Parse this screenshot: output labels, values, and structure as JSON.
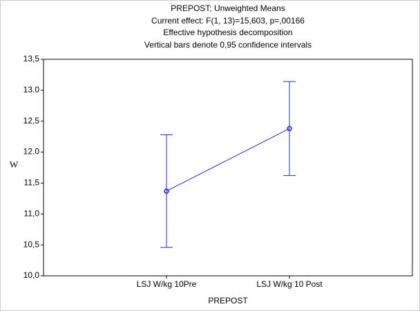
{
  "chart_data": {
    "type": "line",
    "title": "PREPOST; Unweighted Means",
    "subtitles": [
      "Current effect: F(1, 13)=15,603, p=,00166",
      "Effective hypothesis decomposition",
      "Vertical bars denote 0,95 confidence intervals"
    ],
    "x_label": "PREPOST",
    "y_label": "W",
    "categories": [
      "LSJ W/kg 10Pre",
      "LSJ W/kg 10 Post"
    ],
    "series": [
      {
        "color": "#2424e0",
        "values": [
          11.37,
          12.38
        ],
        "errors": [
          0.91,
          0.76
        ]
      }
    ],
    "ylim": [
      10.0,
      13.5
    ],
    "yticks": [
      {
        "value": 10.0,
        "label": "10,0"
      },
      {
        "value": 10.5,
        "label": "10,5"
      },
      {
        "value": 11.0,
        "label": "11,0"
      },
      {
        "value": 11.5,
        "label": "11,5"
      },
      {
        "value": 12.0,
        "label": "12.0"
      },
      {
        "value": 12.5,
        "label": "12,5"
      },
      {
        "value": 13.0,
        "label": "13.0"
      },
      {
        "value": 13.5,
        "label": "13,5"
      }
    ],
    "grid": false
  }
}
